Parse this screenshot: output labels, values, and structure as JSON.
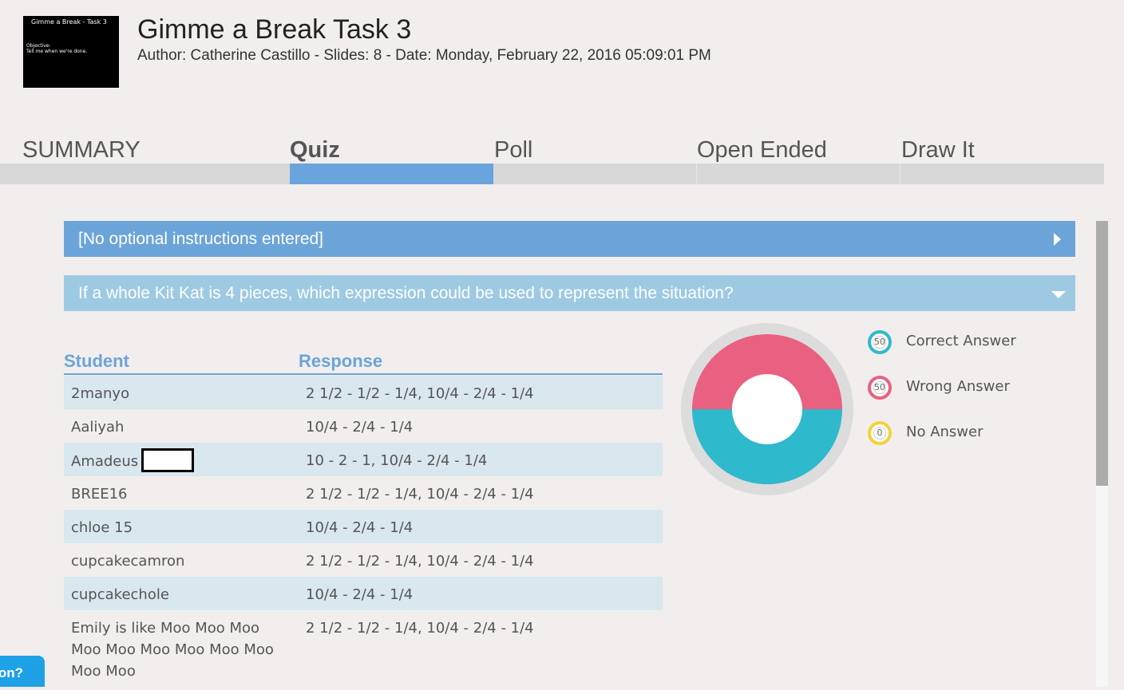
{
  "thumbnail": {
    "title": "Gimme a Break - Task 3",
    "objective_label": "Objective:",
    "objective_text": "Tell me when we're done."
  },
  "header": {
    "title": "Gimme a Break Task 3",
    "meta": "Author: Catherine Castillo - Slides: 8 - Date: Monday, February 22, 2016 05:09:01 PM"
  },
  "tabs": [
    {
      "label": "SUMMARY",
      "active": false
    },
    {
      "label": "Quiz",
      "active": true
    },
    {
      "label": "Poll",
      "active": false
    },
    {
      "label": "Open Ended",
      "active": false
    },
    {
      "label": "Draw It",
      "active": false
    }
  ],
  "instructions_bar": {
    "text": "[No optional instructions entered]"
  },
  "question_bar": {
    "text": "If a whole Kit Kat is 4 pieces, which expression could be used to represent the situation?"
  },
  "table": {
    "headers": {
      "student": "Student",
      "response": "Response"
    },
    "rows": [
      {
        "student": "2manyo",
        "response": "2 1/2 - 1/2 - 1/4, 10/4 - 2/4 - 1/4"
      },
      {
        "student": "Aaliyah",
        "response": "10/4 - 2/4 - 1/4"
      },
      {
        "student": "Amadeus",
        "response": "10 - 2 - 1, 10/4 - 2/4 - 1/4"
      },
      {
        "student": "BREE16",
        "response": "2 1/2 - 1/2 - 1/4, 10/4 - 2/4 - 1/4"
      },
      {
        "student": "chloe 15",
        "response": "10/4 - 2/4 - 1/4"
      },
      {
        "student": "cupcakecamron",
        "response": "2 1/2 - 1/2 - 1/4, 10/4 - 2/4 - 1/4"
      },
      {
        "student": "cupcakechole",
        "response": "10/4 - 2/4 - 1/4"
      },
      {
        "student": "Emily is like Moo Moo Moo Moo Moo Moo Moo Moo Moo Moo Moo",
        "response": "2 1/2 - 1/2 - 1/4, 10/4 - 2/4 - 1/4"
      }
    ]
  },
  "chart_data": {
    "type": "pie",
    "categories": [
      "Correct Answer",
      "Wrong Answer",
      "No Answer"
    ],
    "values": [
      50,
      50,
      0
    ],
    "colors": [
      "#2fb9cc",
      "#ea6080",
      "#f2d23a"
    ]
  },
  "legend": [
    {
      "label": "Correct Answer",
      "value": "50",
      "color": "#2fb9cc"
    },
    {
      "label": "Wrong Answer",
      "value": "50",
      "color": "#ea6080"
    },
    {
      "label": "No Answer",
      "value": "0",
      "color": "#f2d23a"
    }
  ],
  "help_button": {
    "text": "on?"
  }
}
